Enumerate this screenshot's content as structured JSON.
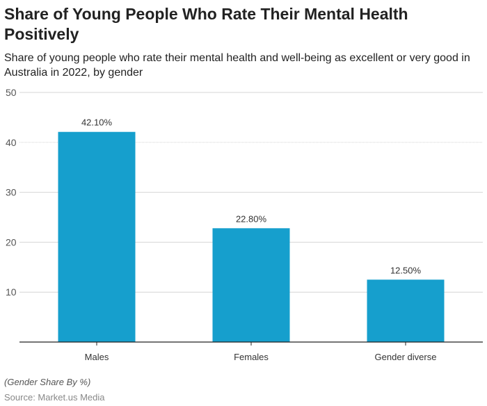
{
  "chart_data": {
    "type": "bar",
    "title": "Share of Young People Who Rate Their Mental Health Positively",
    "subtitle": "Share of young people who rate their mental health and well-being as excellent or very good in Australia in 2022, by gender",
    "categories": [
      "Males",
      "Females",
      "Gender diverse"
    ],
    "values": [
      42.1,
      22.8,
      12.5
    ],
    "data_labels": [
      "42.10%",
      "22.80%",
      "12.50%"
    ],
    "yticks": [
      10,
      20,
      30,
      40,
      50
    ],
    "ylim": [
      0,
      50
    ],
    "grid": true,
    "bar_color": "#169fcd",
    "note": "(Gender Share By %)",
    "source": "Source: Market.us Media"
  }
}
